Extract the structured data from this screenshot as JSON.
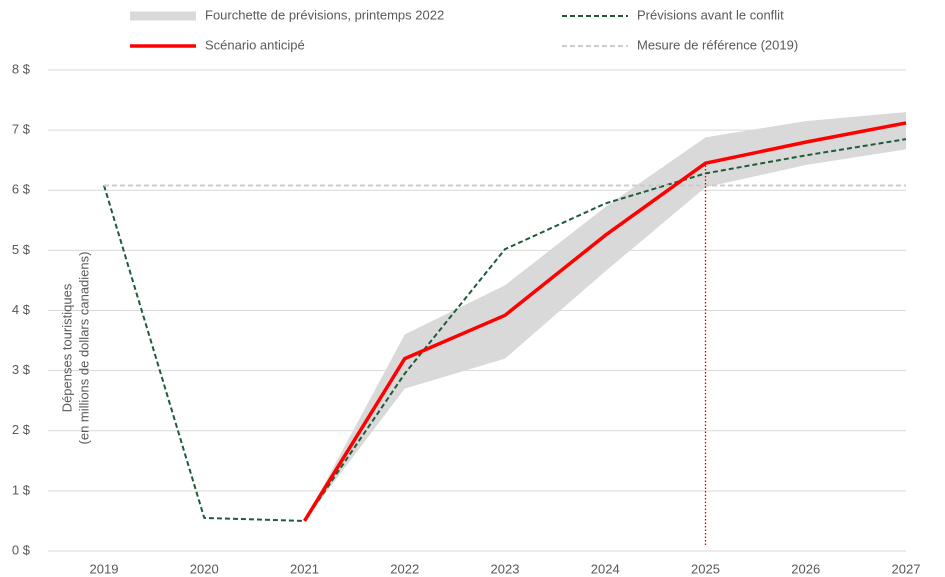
{
  "chart_data": {
    "type": "line",
    "ylabel": [
      "Dépenses touristiques",
      "(en millions de dollars canadiens)"
    ],
    "categories": [
      "2019",
      "2020",
      "2021",
      "2022",
      "2023",
      "2024",
      "2025",
      "2026",
      "2027"
    ],
    "ylim": [
      0,
      8
    ],
    "yticks": [
      {
        "value": 0,
        "label": "0 $"
      },
      {
        "value": 1,
        "label": "1 $"
      },
      {
        "value": 2,
        "label": "2 $"
      },
      {
        "value": 3,
        "label": "3 $"
      },
      {
        "value": 4,
        "label": "4 $"
      },
      {
        "value": 5,
        "label": "5 $"
      },
      {
        "value": 6,
        "label": "6 $"
      },
      {
        "value": 7,
        "label": "7 $"
      },
      {
        "value": 8,
        "label": "8 $"
      }
    ],
    "grid": true,
    "series": [
      {
        "name": "Fourchette de prévisions, printemps 2022",
        "kind": "band",
        "color": "#d9d9d9",
        "lower": [
          null,
          null,
          0.5,
          2.7,
          3.2,
          4.65,
          6.05,
          6.42,
          6.68
        ],
        "upper": [
          null,
          null,
          0.5,
          3.6,
          4.42,
          5.72,
          6.88,
          7.15,
          7.3
        ]
      },
      {
        "name": "Prévisions avant le conflit",
        "kind": "line",
        "style": "dashed",
        "color": "#1e5c3a",
        "values": [
          6.08,
          0.55,
          0.5,
          2.95,
          5.02,
          5.78,
          6.28,
          6.58,
          6.85
        ]
      },
      {
        "name": "Scénario anticipé",
        "kind": "line",
        "style": "solid",
        "color": "#ff0000",
        "values": [
          null,
          null,
          0.5,
          3.2,
          3.92,
          5.25,
          6.45,
          6.8,
          7.12
        ]
      },
      {
        "name": "Mesure de référence (2019)",
        "kind": "line",
        "style": "dashed",
        "color": "#cccccc",
        "values": [
          6.08,
          6.08,
          6.08,
          6.08,
          6.08,
          6.08,
          6.08,
          6.08,
          6.08
        ]
      }
    ],
    "vline": {
      "x": "2025",
      "color": "#e00000"
    }
  }
}
